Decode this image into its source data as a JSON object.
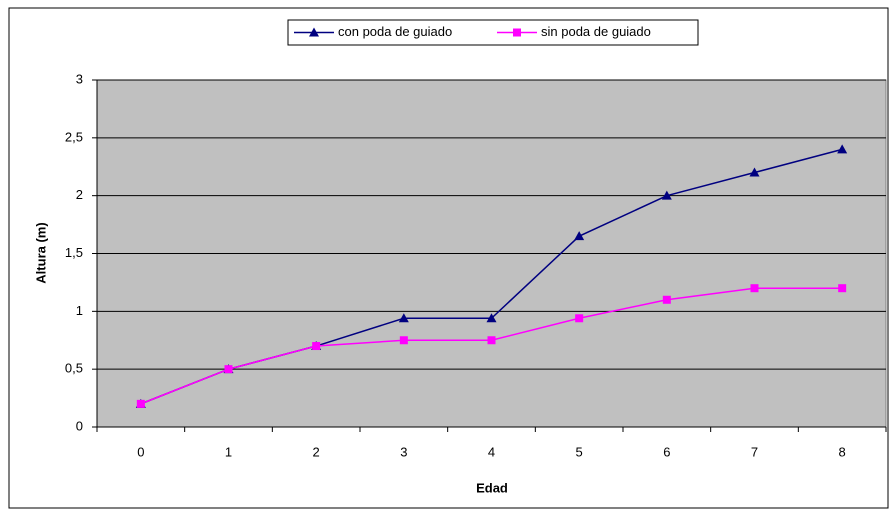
{
  "chart_data": {
    "type": "line",
    "x_label": "Edad",
    "y_label": "Altura (m)",
    "categories": [
      "0",
      "1",
      "2",
      "3",
      "4",
      "5",
      "6",
      "7",
      "8"
    ],
    "series": [
      {
        "name": "con poda de guiado",
        "color": "#000080",
        "marker": "triangle",
        "values": [
          0.2,
          0.5,
          0.7,
          0.94,
          0.94,
          1.65,
          2.0,
          2.2,
          2.4
        ]
      },
      {
        "name": "sin poda de guiado",
        "color": "#ff00ff",
        "marker": "square",
        "values": [
          0.2,
          0.5,
          0.7,
          0.75,
          0.75,
          0.94,
          1.1,
          1.2,
          1.2
        ]
      }
    ],
    "ylim": [
      0,
      3
    ],
    "yticks": [
      0,
      {
        "value": 0.5,
        "label": "0,5"
      },
      1,
      {
        "value": 1.5,
        "label": "1,5"
      },
      2,
      {
        "value": 2.5,
        "label": "2,5"
      },
      3
    ],
    "grid": true,
    "legend": "top"
  }
}
